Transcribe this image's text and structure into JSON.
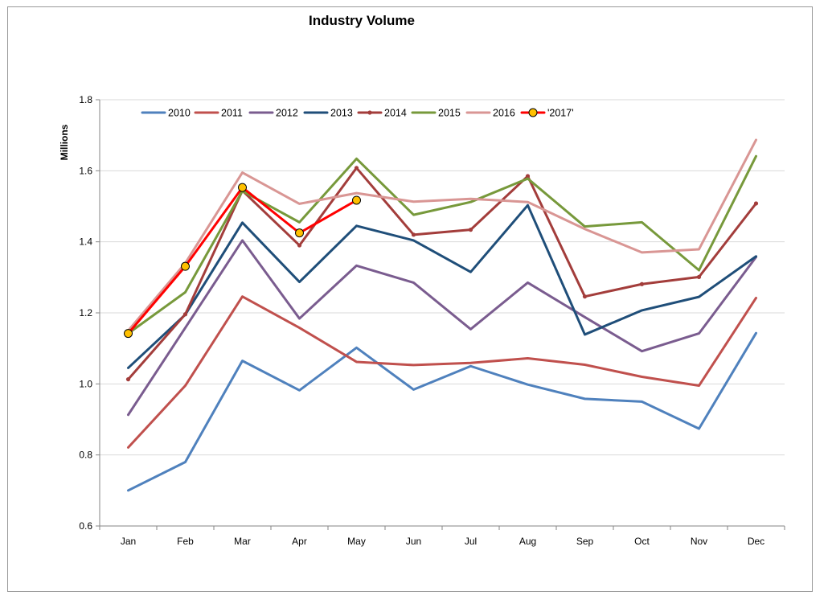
{
  "chart_data": {
    "type": "line",
    "title": "Industry Volume",
    "xlabel": "",
    "ylabel": "Millions",
    "ylim": [
      0.6,
      1.8
    ],
    "yticks": [
      "0.6",
      "0.8",
      "1.0",
      "1.2",
      "1.4",
      "1.6",
      "1.8"
    ],
    "grid": "horizontal",
    "legend": "top-left",
    "categories": [
      "Jan",
      "Feb",
      "Mar",
      "Apr",
      "May",
      "Jun",
      "Jul",
      "Aug",
      "Sep",
      "Oct",
      "Nov",
      "Dec"
    ],
    "series": [
      {
        "name": "2010",
        "color": "#4f81bd",
        "marker": "none",
        "values": [
          0.7,
          0.78,
          1.065,
          0.982,
          1.102,
          0.984,
          1.05,
          0.998,
          0.958,
          0.95,
          0.874,
          1.143
        ]
      },
      {
        "name": "2011",
        "color": "#c0504d",
        "marker": "none",
        "values": [
          0.821,
          0.995,
          1.246,
          1.158,
          1.062,
          1.053,
          1.059,
          1.072,
          1.054,
          1.02,
          0.995,
          1.242
        ]
      },
      {
        "name": "2012",
        "color": "#7a5c8f",
        "marker": "none",
        "values": [
          0.913,
          1.158,
          1.404,
          1.184,
          1.333,
          1.285,
          1.154,
          1.285,
          1.188,
          1.092,
          1.142,
          1.357
        ]
      },
      {
        "name": "2013",
        "color": "#1f4e79",
        "marker": "none",
        "values": [
          1.045,
          1.195,
          1.454,
          1.287,
          1.445,
          1.404,
          1.315,
          1.503,
          1.139,
          1.207,
          1.245,
          1.359
        ]
      },
      {
        "name": "2014",
        "color": "#a33d3b",
        "marker": "dot",
        "values": [
          1.013,
          1.196,
          1.544,
          1.39,
          1.608,
          1.42,
          1.434,
          1.585,
          1.246,
          1.281,
          1.301,
          1.508
        ]
      },
      {
        "name": "2015",
        "color": "#77993b",
        "marker": "none",
        "values": [
          1.142,
          1.258,
          1.543,
          1.455,
          1.634,
          1.476,
          1.512,
          1.578,
          1.443,
          1.455,
          1.32,
          1.641
        ]
      },
      {
        "name": "2016",
        "color": "#d99694",
        "marker": "none",
        "values": [
          1.15,
          1.34,
          1.595,
          1.507,
          1.537,
          1.513,
          1.521,
          1.512,
          1.436,
          1.37,
          1.379,
          1.687
        ]
      },
      {
        "name": "'2017'",
        "color": "#ff0000",
        "marker": "circle",
        "marker_fill": "#ffc000",
        "values": [
          1.142,
          1.331,
          1.553,
          1.425,
          1.517,
          null,
          null,
          null,
          null,
          null,
          null,
          null
        ]
      }
    ]
  }
}
